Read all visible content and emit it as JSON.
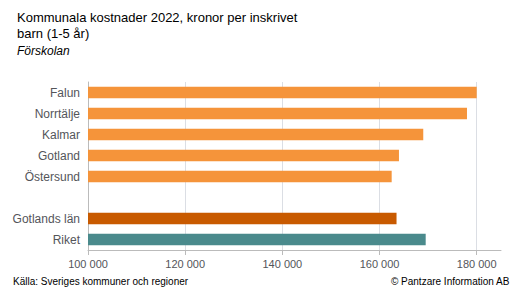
{
  "chart_data": {
    "type": "bar",
    "orientation": "horizontal",
    "title": "Kommunala kostnader 2022, kronor per inskrivet\nbarn (1-5 år)",
    "subtitle": "Förskolan",
    "categories": [
      "Riket",
      "Gotlands län",
      null,
      "Östersund",
      "Gotland",
      "Kalmar",
      "Norrtälje",
      "Falun"
    ],
    "values": [
      169500,
      163500,
      null,
      162500,
      164000,
      169000,
      178000,
      180000
    ],
    "colors": [
      "#4A8A8C",
      "#C85A00",
      null,
      "#F5943A",
      "#F5943A",
      "#F5943A",
      "#F5943A",
      "#F5943A"
    ],
    "xlim": [
      100000,
      185000
    ],
    "xticks": [
      {
        "value": 100000,
        "label": "100 000"
      },
      {
        "value": 120000,
        "label": "120 000"
      },
      {
        "value": 140000,
        "label": "140 000"
      },
      {
        "value": 160000,
        "label": "160 000"
      },
      {
        "value": 180000,
        "label": "180 000"
      }
    ],
    "grid": true,
    "annotations": [
      "Källa: Sveriges kommuner och regioner",
      "© Pantzare Information AB"
    ]
  }
}
